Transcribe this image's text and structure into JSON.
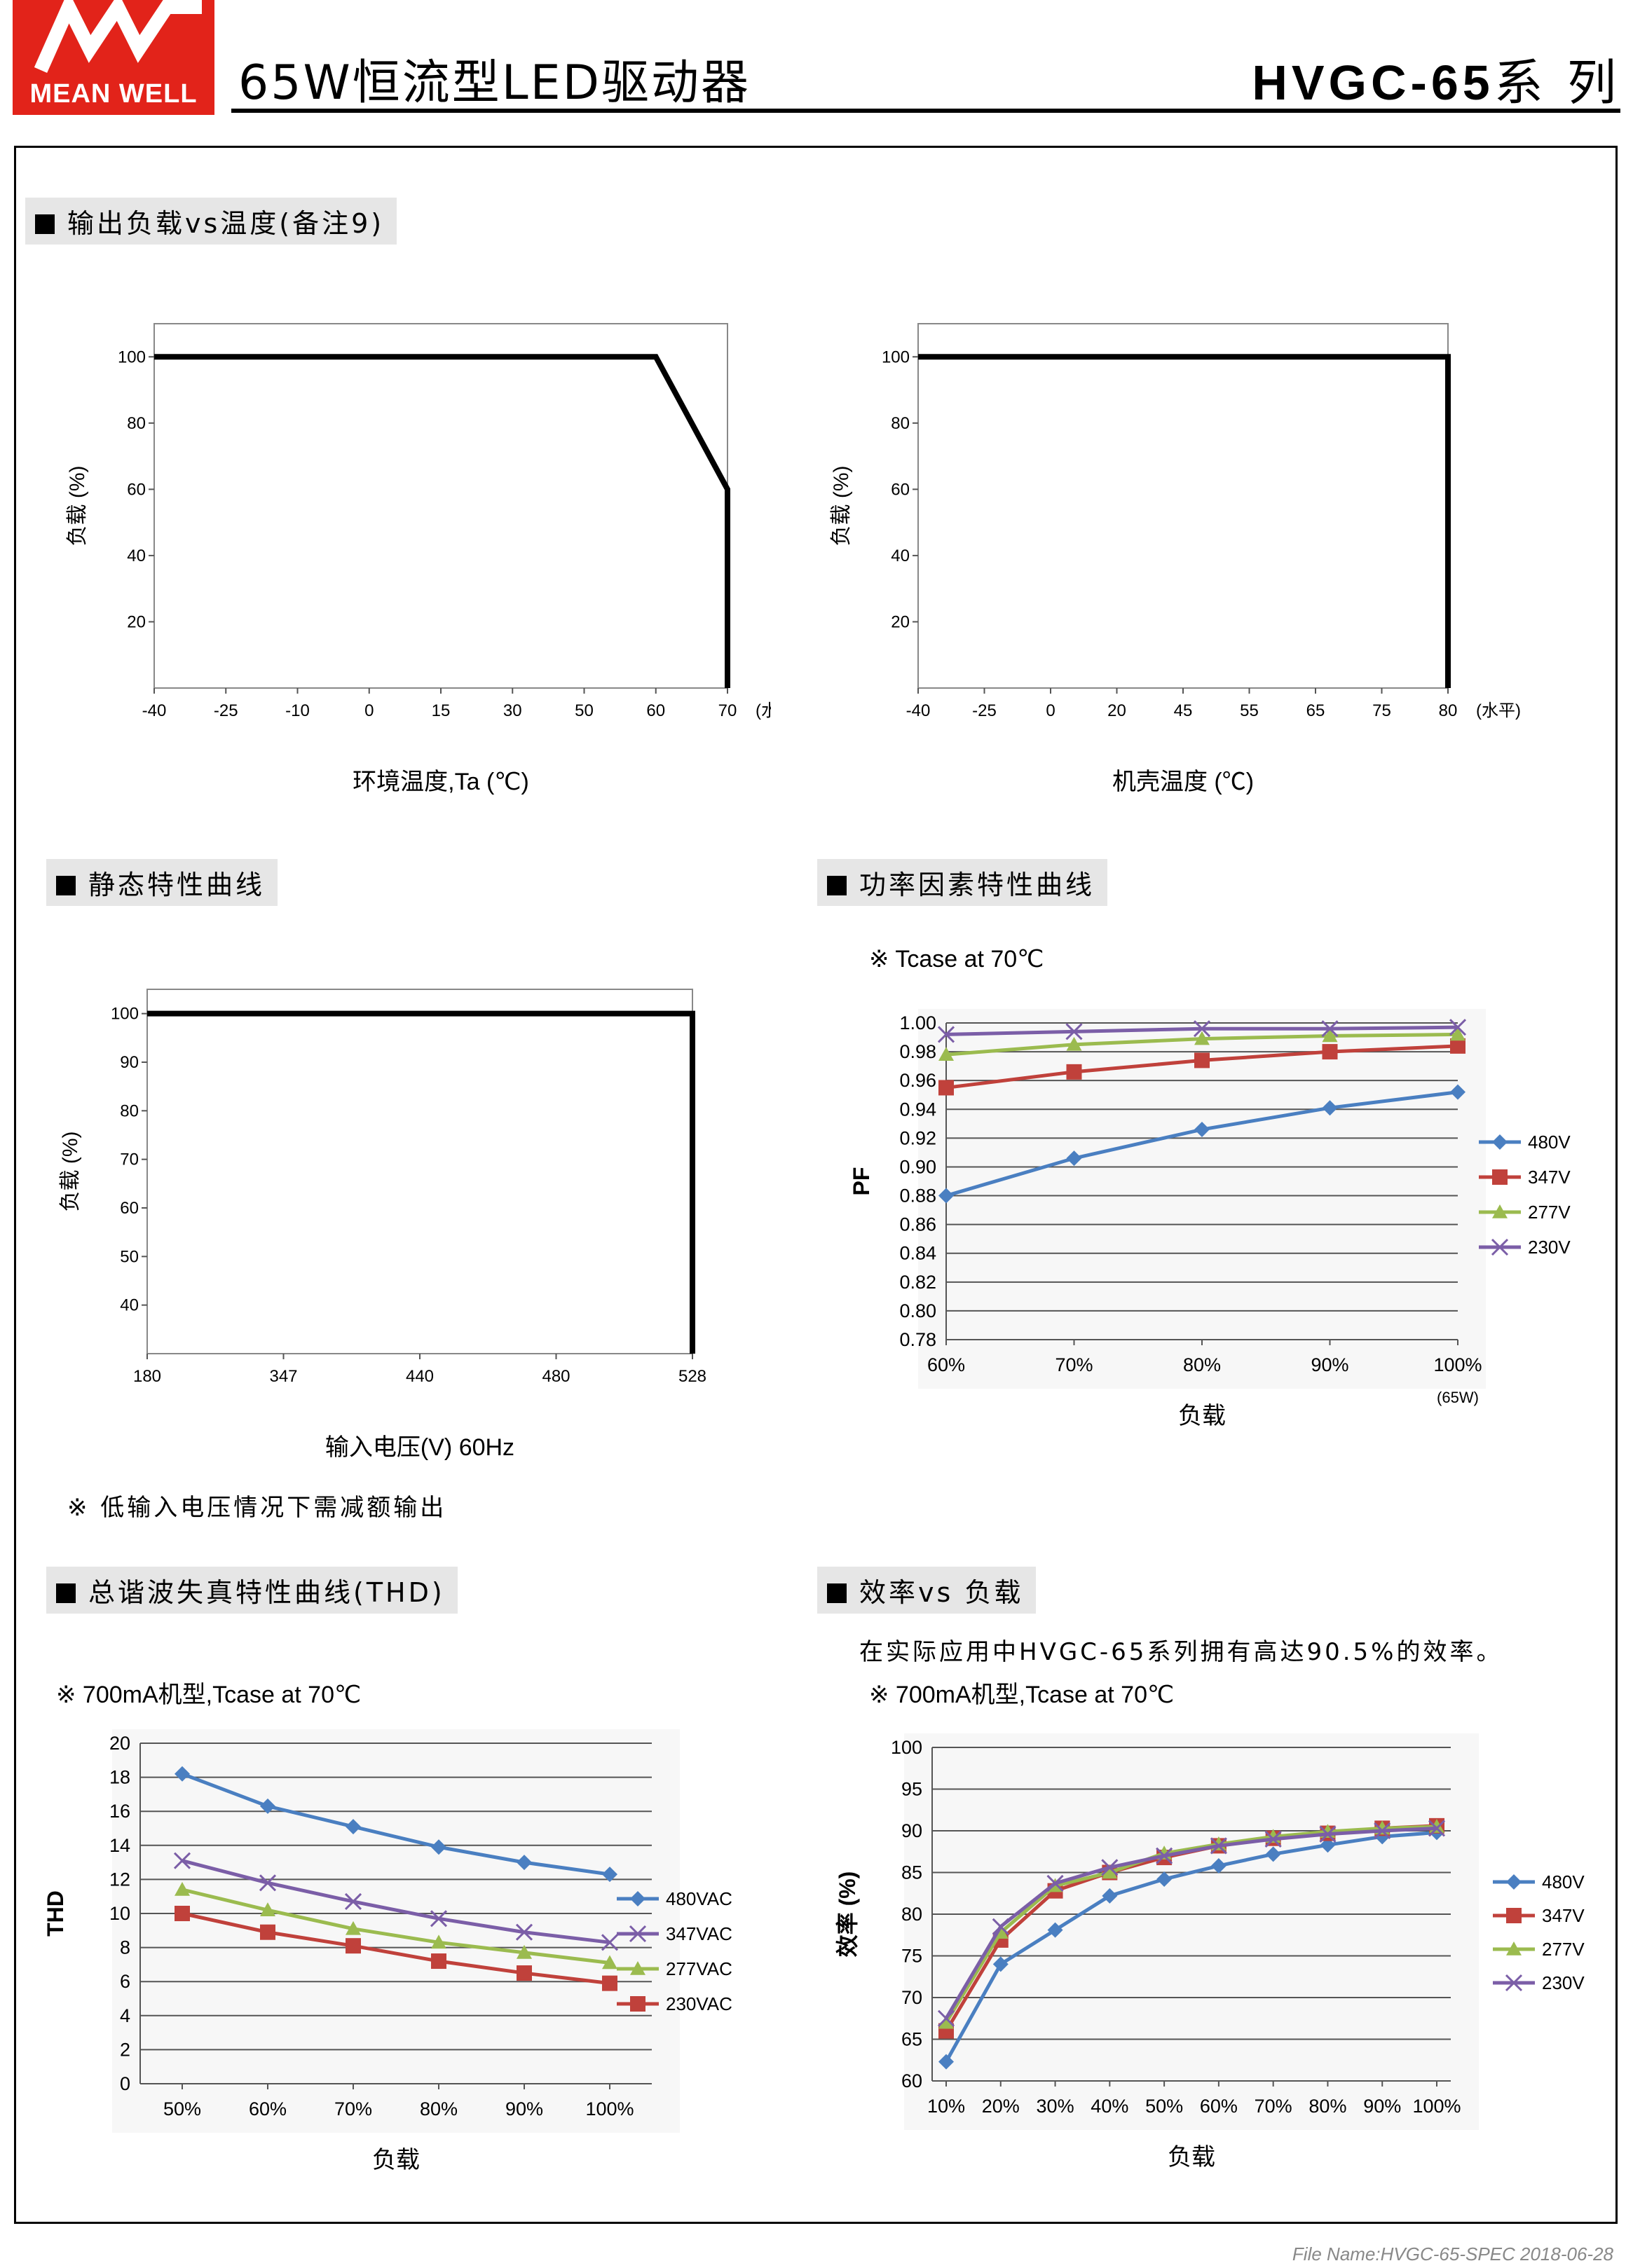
{
  "header": {
    "logo_text": "MEAN WELL",
    "title": "65W恒流型LED驱动器",
    "series_model": "HVGC-65",
    "series_suffix": "系 列"
  },
  "sections": {
    "derating": "输出负载vs温度(备注9)",
    "static": "静态特性曲线",
    "pf": "功率因素特性曲线",
    "thd": "总谐波失真特性曲线(THD)",
    "eff": "效率vs 负载"
  },
  "notes": {
    "static_note": "※ 低输入电压情况下需减额输出",
    "eff_note": "在实际应用中HVGC-65系列拥有高达90.5%的效率。"
  },
  "footer": {
    "text": "File Name:HVGC-65-SPEC   2018-06-28"
  },
  "chart_data": [
    {
      "id": "derating_ta",
      "type": "line",
      "xlabel": "环境温度,Ta (℃)",
      "ylabel": "负载 (%)",
      "x_ticks": [
        "-40",
        "-25",
        "-10",
        "0",
        "15",
        "30",
        "50",
        "60",
        "70"
      ],
      "x_unit": "(水平)",
      "y_ticks": [
        20,
        40,
        60,
        80,
        100
      ],
      "series": [
        {
          "points": [
            [
              "-40",
              100
            ],
            [
              "60",
              100
            ],
            [
              "70",
              60
            ],
            [
              "70",
              0
            ]
          ]
        }
      ]
    },
    {
      "id": "derating_tcase",
      "type": "line",
      "xlabel": "机壳温度 (℃)",
      "ylabel": "负载 (%)",
      "x_ticks": [
        "-40",
        "-25",
        "0",
        "20",
        "45",
        "55",
        "65",
        "75",
        "80"
      ],
      "x_unit": "(水平)",
      "y_ticks": [
        20,
        40,
        60,
        80,
        100
      ],
      "series": [
        {
          "points": [
            [
              "-40",
              100
            ],
            [
              "80",
              100
            ],
            [
              "80",
              0
            ]
          ]
        }
      ]
    },
    {
      "id": "static",
      "type": "line",
      "xlabel": "输入电压(V) 60Hz",
      "ylabel": "负载 (%)",
      "x_ticks": [
        "180",
        "347",
        "440",
        "480",
        "528"
      ],
      "y_ticks": [
        40,
        50,
        60,
        70,
        80,
        90,
        100
      ],
      "series": [
        {
          "points": [
            [
              "180",
              100
            ],
            [
              "528",
              100
            ],
            [
              "528",
              30
            ]
          ]
        }
      ]
    },
    {
      "id": "pf",
      "type": "line",
      "subtitle": "※ Tcase at 70℃",
      "xlabel": "负载",
      "ylabel": "PF",
      "categories": [
        "60%",
        "70%",
        "80%",
        "90%",
        "100%"
      ],
      "x_note": "(65W)",
      "ylim": [
        0.78,
        1.0
      ],
      "y_ticks": [
        "0.78",
        "0.80",
        "0.82",
        "0.84",
        "0.86",
        "0.88",
        "0.90",
        "0.92",
        "0.94",
        "0.96",
        "0.98",
        "1.00"
      ],
      "series": [
        {
          "name": "480V",
          "color": "#4a7fc1",
          "marker": "diamond",
          "values": [
            0.88,
            0.906,
            0.926,
            0.941,
            0.952
          ]
        },
        {
          "name": "347V",
          "color": "#c0413b",
          "marker": "square",
          "values": [
            0.955,
            0.966,
            0.974,
            0.98,
            0.984
          ]
        },
        {
          "name": "277V",
          "color": "#9bbb4f",
          "marker": "triangle",
          "values": [
            0.978,
            0.985,
            0.989,
            0.991,
            0.992
          ]
        },
        {
          "name": "230V",
          "color": "#7b5ea7",
          "marker": "x",
          "values": [
            0.992,
            0.994,
            0.996,
            0.996,
            0.997
          ]
        }
      ]
    },
    {
      "id": "thd",
      "type": "line",
      "subtitle": "※ 700mA机型,Tcase at 70℃",
      "xlabel": "负载",
      "ylabel": "THD",
      "categories": [
        "50%",
        "60%",
        "70%",
        "80%",
        "90%",
        "100%"
      ],
      "ylim": [
        0,
        20
      ],
      "y_ticks": [
        "0",
        "2",
        "4",
        "6",
        "8",
        "10",
        "12",
        "14",
        "16",
        "18",
        "20"
      ],
      "series": [
        {
          "name": "480VAC",
          "color": "#4a7fc1",
          "marker": "diamond",
          "values": [
            18.2,
            16.3,
            15.1,
            13.9,
            13.0,
            12.3
          ]
        },
        {
          "name": "347VAC",
          "color": "#7b5ea7",
          "marker": "x",
          "values": [
            13.1,
            11.8,
            10.7,
            9.7,
            8.9,
            8.3
          ]
        },
        {
          "name": "277VAC",
          "color": "#9bbb4f",
          "marker": "triangle",
          "values": [
            11.4,
            10.2,
            9.1,
            8.3,
            7.7,
            7.1
          ]
        },
        {
          "name": "230VAC",
          "color": "#c0413b",
          "marker": "square",
          "values": [
            10.0,
            8.9,
            8.1,
            7.2,
            6.5,
            5.9
          ]
        }
      ]
    },
    {
      "id": "efficiency",
      "type": "line",
      "subtitle": "※ 700mA机型,Tcase at 70℃",
      "xlabel": "负载",
      "ylabel": "效率 (%)",
      "categories": [
        "10%",
        "20%",
        "30%",
        "40%",
        "50%",
        "60%",
        "70%",
        "80%",
        "90%",
        "100%"
      ],
      "ylim": [
        60,
        100
      ],
      "y_ticks": [
        "60",
        "65",
        "70",
        "75",
        "80",
        "85",
        "90",
        "95",
        "100"
      ],
      "series": [
        {
          "name": "480V",
          "color": "#4a7fc1",
          "marker": "diamond",
          "values": [
            62.3,
            74.0,
            78.1,
            82.2,
            84.2,
            85.8,
            87.2,
            88.3,
            89.3,
            89.8
          ]
        },
        {
          "name": "347V",
          "color": "#c0413b",
          "marker": "square",
          "values": [
            66.0,
            76.9,
            82.8,
            85.0,
            86.8,
            88.2,
            89.1,
            89.7,
            90.3,
            90.6
          ]
        },
        {
          "name": "277V",
          "color": "#9bbb4f",
          "marker": "triangle",
          "values": [
            67.0,
            77.8,
            83.4,
            85.0,
            87.3,
            88.4,
            89.3,
            89.9,
            90.3,
            90.5
          ]
        },
        {
          "name": "230V",
          "color": "#7b5ea7",
          "marker": "x",
          "values": [
            67.5,
            78.5,
            83.7,
            85.6,
            87.0,
            88.2,
            89.0,
            89.6,
            90.0,
            90.3
          ]
        }
      ]
    }
  ]
}
